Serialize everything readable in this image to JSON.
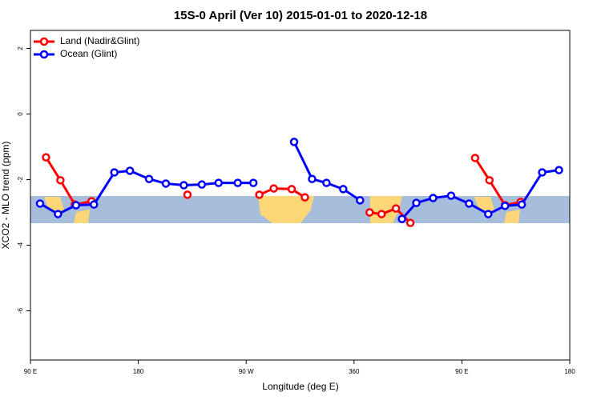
{
  "chart_data": {
    "type": "line",
    "title": "15S-0 April (Ver 10)   2015-01-01 to 2020-12-18",
    "x_label": "Longitude (deg E)",
    "y_label": "XCO2 - MLO trend (ppm)",
    "xlim": [
      90,
      540
    ],
    "ylim": [
      -7.5,
      2.55
    ],
    "xticks": [
      {
        "value": 90,
        "label": "90 E"
      },
      180,
      {
        "value": 270,
        "label": "90 W"
      },
      360,
      {
        "value": 450,
        "label": "90 E"
      },
      {
        "value": 540,
        "label": "180"
      }
    ],
    "yticks": [
      -6,
      -4,
      -2,
      0,
      2
    ],
    "legend": "top-left",
    "series": [
      {
        "name": "Land (Nadir&Glint)",
        "color": "#ff0000",
        "x": [
          103,
          115,
          127,
          141,
          null,
          221,
          null,
          281,
          293,
          308,
          319,
          null,
          373,
          383,
          395,
          407,
          null,
          461,
          473,
          486,
          499
        ],
        "values": [
          -1.32,
          -2.02,
          -2.76,
          -2.66,
          null,
          -2.46,
          null,
          -2.46,
          -2.27,
          -2.29,
          -2.54,
          null,
          -3.0,
          -3.05,
          -2.88,
          -3.32,
          null,
          -1.34,
          -2.02,
          -2.78,
          -2.68
        ]
      },
      {
        "name": "Ocean (Glint)",
        "color": "#0000ff",
        "x": [
          98,
          113,
          128,
          143,
          160,
          173,
          189,
          203,
          218,
          233,
          247,
          263,
          276,
          null,
          310,
          325,
          337,
          351,
          365,
          null,
          400,
          412,
          426,
          441,
          456,
          472,
          486,
          500,
          517,
          531
        ],
        "values": [
          -2.73,
          -3.05,
          -2.78,
          -2.76,
          -1.78,
          -1.73,
          -1.98,
          -2.12,
          -2.17,
          -2.15,
          -2.1,
          -2.1,
          -2.1,
          null,
          -0.85,
          -1.98,
          -2.1,
          -2.29,
          -2.63,
          null,
          -3.2,
          -2.71,
          -2.56,
          -2.49,
          -2.73,
          -3.05,
          -2.8,
          -2.76,
          -1.78,
          -1.71
        ]
      }
    ]
  }
}
